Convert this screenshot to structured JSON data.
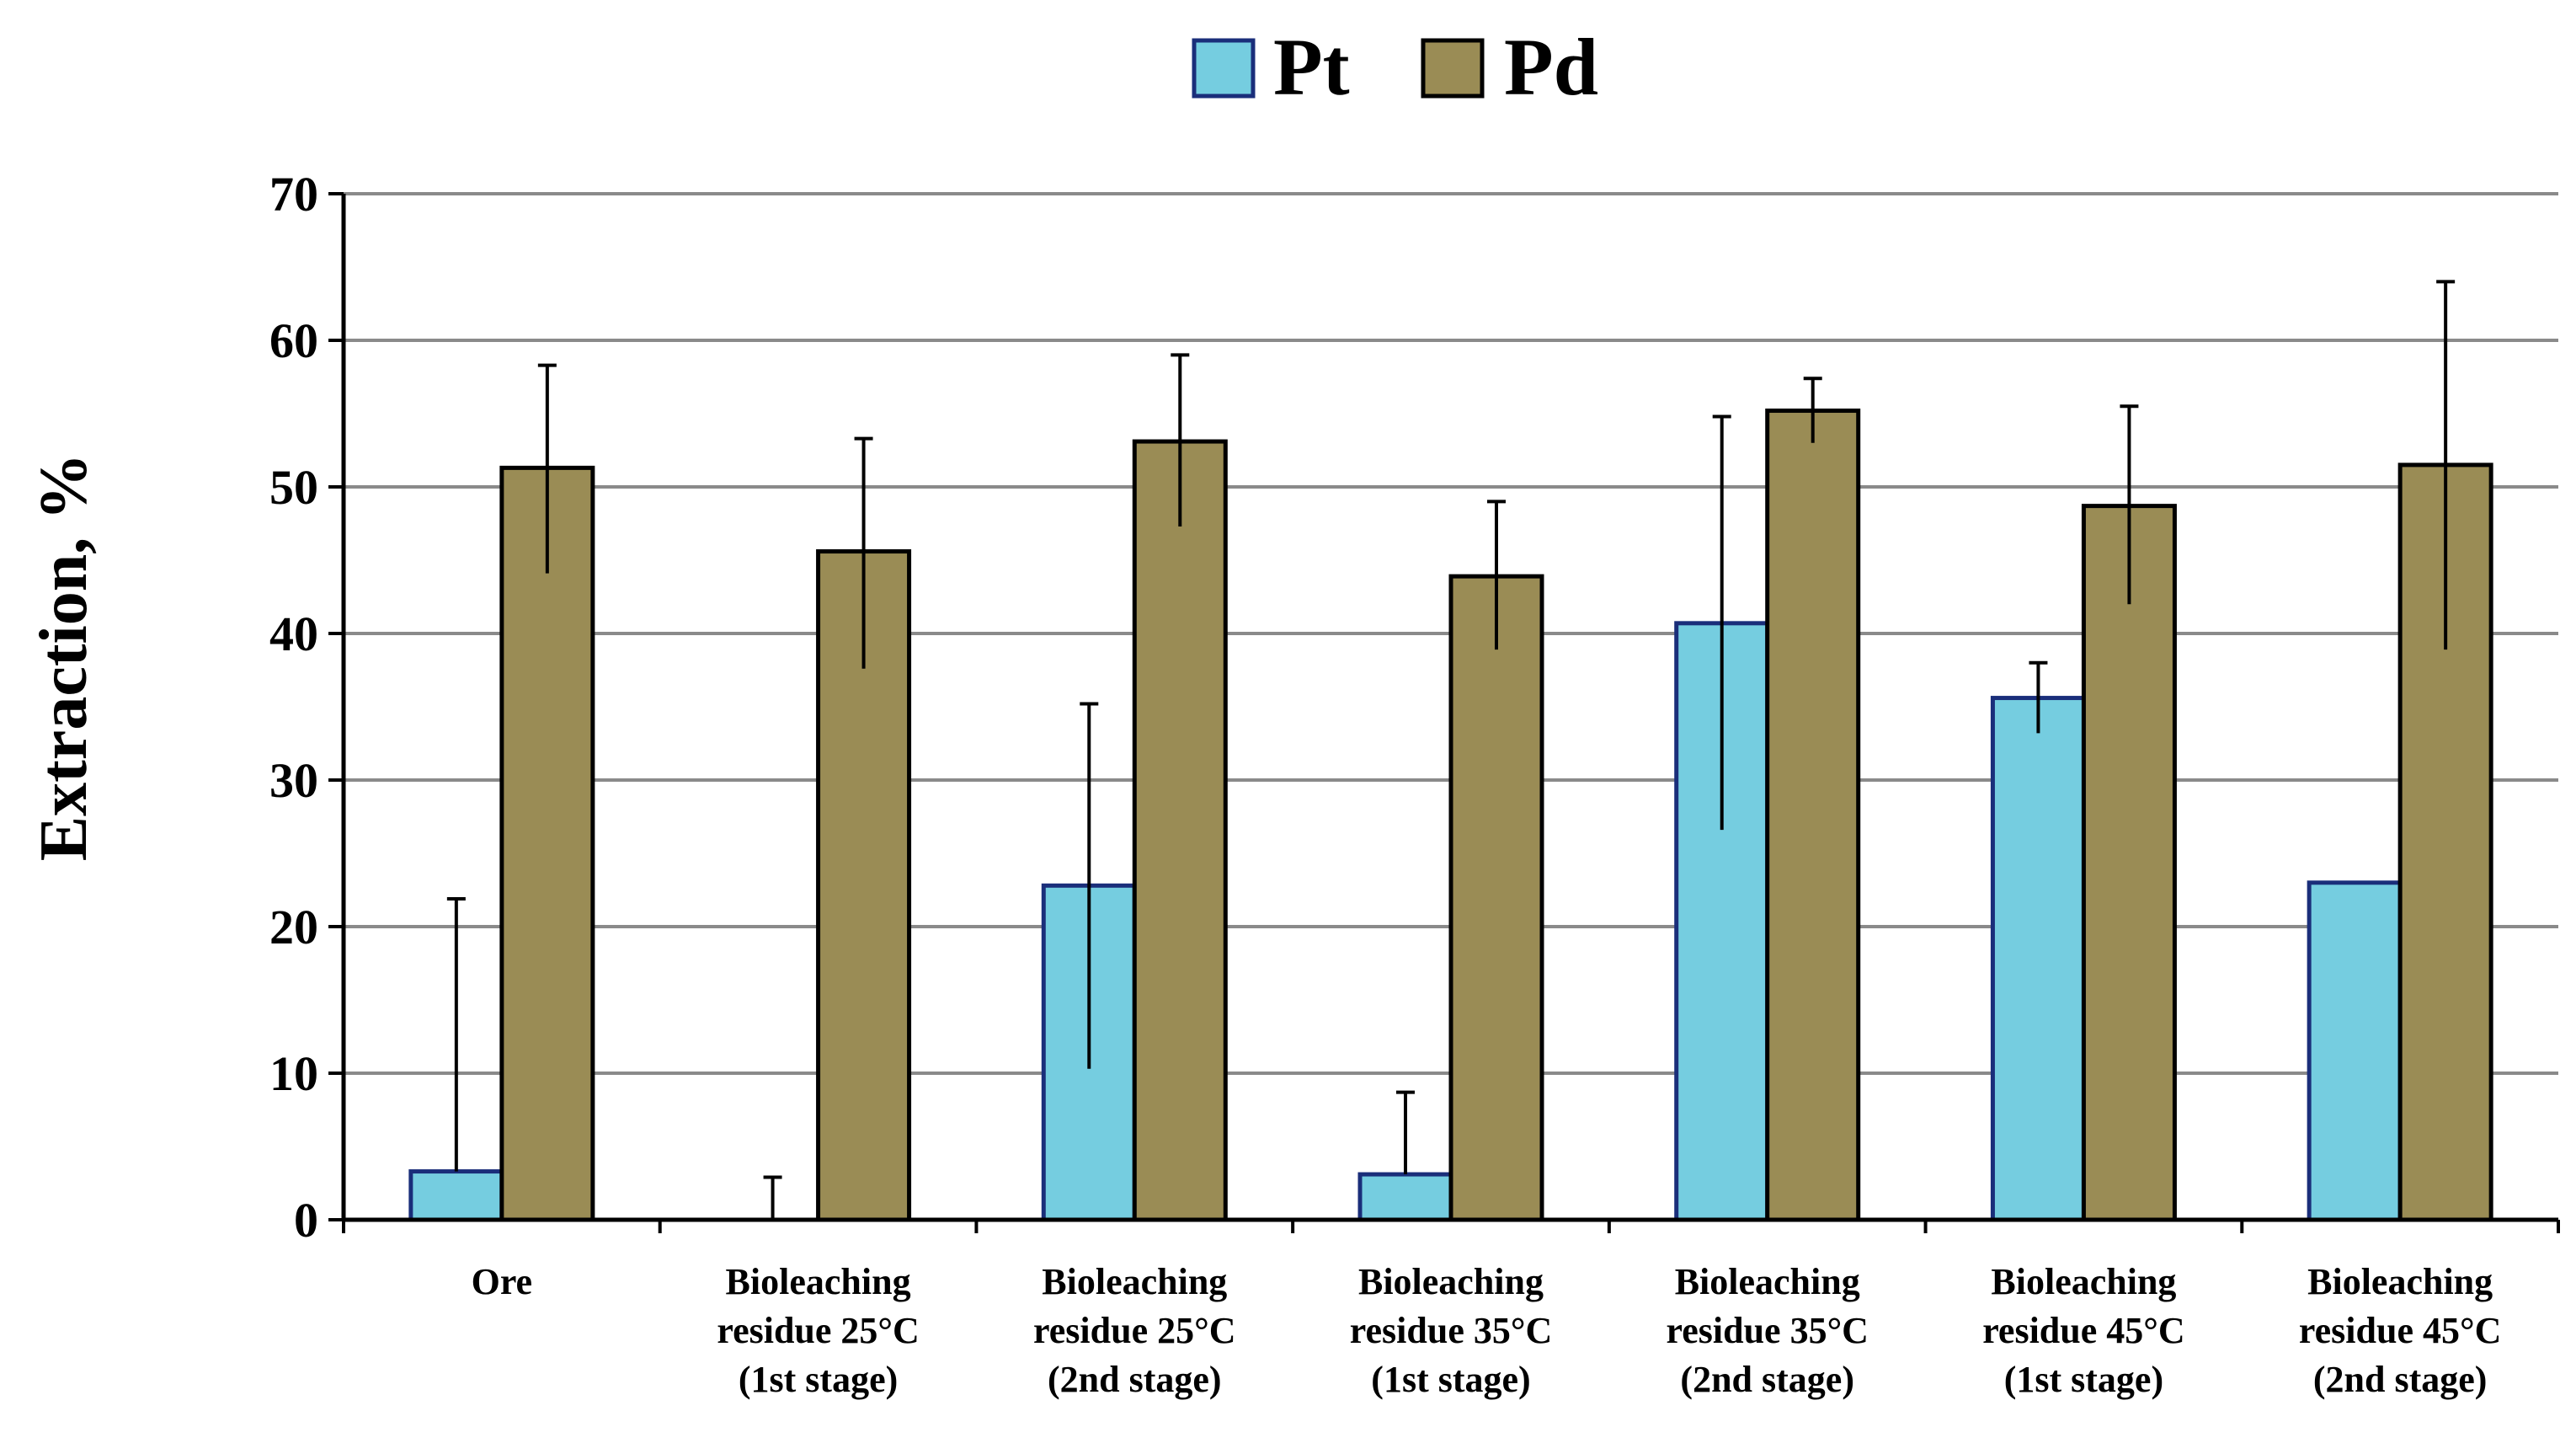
{
  "chart_data": {
    "type": "bar",
    "title": "",
    "xlabel": "",
    "ylabel": "Extraction, %",
    "ylim": [
      0,
      70
    ],
    "yticks": [
      0,
      10,
      20,
      30,
      40,
      50,
      60,
      70
    ],
    "grid": true,
    "legend_position": "top-center",
    "categories": [
      [
        "Ore"
      ],
      [
        "Bioleaching",
        "residue 25°C",
        "(1st stage)"
      ],
      [
        "Bioleaching",
        "residue 25°C",
        "(2nd stage)"
      ],
      [
        "Bioleaching",
        "residue 35°C",
        "(1st stage)"
      ],
      [
        "Bioleaching",
        "residue 35°C",
        "(2nd stage)"
      ],
      [
        "Bioleaching",
        "residue 45°C",
        "(1st stage)"
      ],
      [
        "Bioleaching",
        "residue 45°C",
        "(2nd stage)"
      ]
    ],
    "series": [
      {
        "name": "Pt",
        "color": "#75CDE0",
        "values": [
          3.3,
          0,
          22.8,
          3.1,
          40.7,
          35.6,
          23.0
        ],
        "error_up": [
          21.9,
          2.9,
          35.2,
          8.7,
          54.8,
          38.0,
          23.0
        ],
        "error_down": [
          3.3,
          0,
          10.3,
          3.1,
          26.6,
          33.2,
          23.0
        ]
      },
      {
        "name": "Pd",
        "color": "#9A8C55",
        "values": [
          51.3,
          45.6,
          53.1,
          43.9,
          55.2,
          48.7,
          51.5
        ],
        "error_up": [
          58.3,
          53.3,
          59.0,
          49.0,
          57.4,
          55.5,
          64.0
        ],
        "error_down": [
          44.1,
          37.6,
          47.3,
          38.9,
          53.0,
          42.0,
          38.9
        ]
      }
    ]
  }
}
